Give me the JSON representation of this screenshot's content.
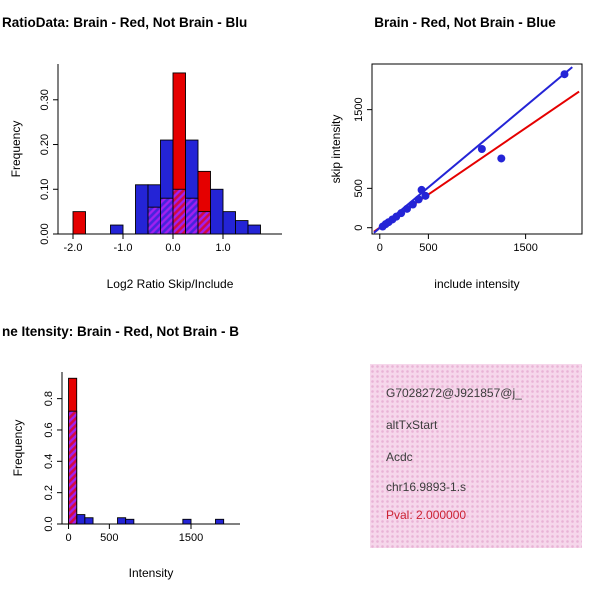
{
  "chart_data": [
    {
      "panel": "top-left",
      "type": "histogram",
      "title": "RatioData: Brain - Red, Not Brain - Blu",
      "xlabel": "Log2 Ratio Skip/Include",
      "ylabel": "Frequency",
      "bin_width": 0.25,
      "xlim": [
        -2.3,
        2.18
      ],
      "ylim": [
        0,
        0.38
      ],
      "xticks": [
        -2.0,
        -1.0,
        0.0,
        1.0
      ],
      "xtick_labels": [
        "-2.0",
        "-1.0",
        "0.0",
        "1.0"
      ],
      "yticks": [
        0.0,
        0.1,
        0.2,
        0.3
      ],
      "ytick_labels": [
        "0.00",
        "0.10",
        "0.20",
        "0.30"
      ],
      "series": [
        {
          "name": "not-brain-blue",
          "fill": "blue",
          "bins": [
            {
              "x": -1.25,
              "h": 0.02
            },
            {
              "x": -0.75,
              "h": 0.11
            },
            {
              "x": -0.5,
              "h": 0.11
            },
            {
              "x": -0.25,
              "h": 0.21
            },
            {
              "x": 0.0,
              "h": 0.11
            },
            {
              "x": 0.25,
              "h": 0.21
            },
            {
              "x": 0.5,
              "h": 0.05
            },
            {
              "x": 0.75,
              "h": 0.1
            },
            {
              "x": 1.0,
              "h": 0.05
            },
            {
              "x": 1.25,
              "h": 0.03
            },
            {
              "x": 1.5,
              "h": 0.02
            }
          ]
        },
        {
          "name": "brain-red",
          "fill": "red",
          "bins": [
            {
              "x": -2.0,
              "h": 0.05
            },
            {
              "x": 0.0,
              "h": 0.36
            },
            {
              "x": 0.5,
              "h": 0.14
            }
          ]
        },
        {
          "name": "overlap-purple",
          "fill": "hatch",
          "bins": [
            {
              "x": -0.5,
              "h": 0.06
            },
            {
              "x": -0.25,
              "h": 0.08
            },
            {
              "x": 0.0,
              "h": 0.1
            },
            {
              "x": 0.25,
              "h": 0.08
            },
            {
              "x": 0.5,
              "h": 0.05
            }
          ]
        }
      ]
    },
    {
      "panel": "top-right",
      "type": "scatter",
      "title": "Brain - Red, Not Brain - Blue",
      "xlabel": "include intensity",
      "ylabel": "skip intensity",
      "xlim": [
        -80,
        2080
      ],
      "ylim": [
        -80,
        2080
      ],
      "xticks": [
        0,
        500,
        1500
      ],
      "xtick_labels": [
        "0",
        "500",
        "1500"
      ],
      "yticks": [
        0,
        500,
        1500
      ],
      "ytick_labels": [
        "0",
        "500",
        "1500"
      ],
      "points": [
        [
          30,
          15
        ],
        [
          60,
          45
        ],
        [
          90,
          70
        ],
        [
          130,
          105
        ],
        [
          170,
          140
        ],
        [
          220,
          185
        ],
        [
          280,
          240
        ],
        [
          340,
          295
        ],
        [
          400,
          360
        ],
        [
          430,
          480
        ],
        [
          470,
          405
        ],
        [
          1050,
          1000
        ],
        [
          1250,
          880
        ],
        [
          1900,
          1950
        ]
      ],
      "lines": [
        {
          "name": "fit-line-red",
          "color": "red",
          "points": [
            [
              -60,
              -50
            ],
            [
              2050,
              1730
            ]
          ]
        },
        {
          "name": "fit-line-blue",
          "color": "blue",
          "points": [
            [
              -60,
              -65
            ],
            [
              1980,
              2040
            ]
          ]
        }
      ]
    },
    {
      "panel": "bottom-left",
      "type": "histogram",
      "title": "ne Itensity: Brain - Red, Not Brain - B",
      "xlabel": "Intensity",
      "ylabel": "Frequency",
      "bin_width": 100,
      "xlim": [
        -80,
        2100
      ],
      "ylim": [
        0,
        0.97
      ],
      "xticks": [
        0,
        500,
        1500
      ],
      "xtick_labels": [
        "0",
        "500",
        "1500"
      ],
      "yticks": [
        0.0,
        0.2,
        0.4,
        0.6,
        0.8
      ],
      "ytick_labels": [
        "0.0",
        "0.2",
        "0.4",
        "0.6",
        "0.8"
      ],
      "series": [
        {
          "name": "not-brain-blue",
          "fill": "blue",
          "bins": [
            {
              "x": 100,
              "h": 0.06
            },
            {
              "x": 200,
              "h": 0.04
            },
            {
              "x": 600,
              "h": 0.04
            },
            {
              "x": 700,
              "h": 0.03
            },
            {
              "x": 1400,
              "h": 0.03
            },
            {
              "x": 1800,
              "h": 0.03
            }
          ]
        },
        {
          "name": "brain-red",
          "fill": "red",
          "bins": [
            {
              "x": 0,
              "h": 0.93
            }
          ]
        },
        {
          "name": "overlap-purple",
          "fill": "hatch",
          "bins": [
            {
              "x": 0,
              "h": 0.72
            }
          ]
        }
      ]
    },
    {
      "panel": "bottom-right",
      "type": "info-box",
      "lines": [
        "G7028272@J921857@j_",
        "altTxStart",
        "Acdc",
        "chr16.9893-1.s"
      ],
      "pval": "Pval: 2.000000"
    }
  ],
  "colors": {
    "red": "#e50000",
    "blue": "#2424d6",
    "purple": "#a020f0",
    "info_bg": "#f6d7eb",
    "info_dot": "#e9b3d6",
    "info_text": "#3c3c3c",
    "pval_text": "#cc2233"
  }
}
